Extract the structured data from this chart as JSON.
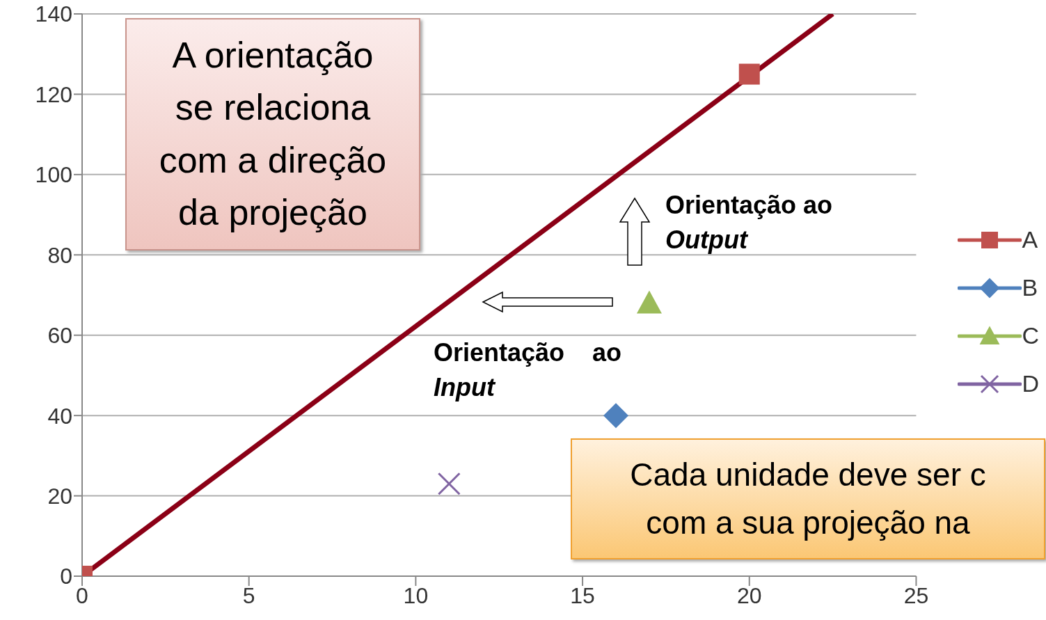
{
  "chart_data": {
    "type": "scatter",
    "xlim": [
      0,
      25
    ],
    "xticks": [
      0,
      5,
      10,
      15,
      20,
      25
    ],
    "ylim": [
      0,
      140
    ],
    "yticks": [
      0,
      20,
      40,
      60,
      80,
      100,
      120,
      140
    ],
    "grid": "y",
    "legend": "right",
    "series": [
      {
        "type": "line",
        "color": "#8b0016",
        "x": [
          0,
          22.5
        ],
        "values": [
          0,
          140
        ],
        "marker": "none"
      },
      {
        "name": "A",
        "color": "#c0504d",
        "x": [
          0,
          20
        ],
        "values": [
          0,
          125
        ],
        "marker": "square"
      },
      {
        "name": "B",
        "color": "#4f81bd",
        "x": [
          16
        ],
        "values": [
          40
        ],
        "marker": "diamond"
      },
      {
        "name": "C",
        "color": "#9bbb59",
        "x": [
          17
        ],
        "values": [
          68
        ],
        "marker": "triangle"
      },
      {
        "name": "D",
        "color": "#8064a2",
        "x": [
          11
        ],
        "values": [
          23
        ],
        "marker": "cross"
      }
    ],
    "annotations": [
      "A orientação\nse relaciona\ncom a direção\nda projeção",
      "Orientação ao\nOutput",
      "Orientação    ao\nInput",
      "Cada unidade deve ser c\ncom a sua projeção na"
    ]
  }
}
